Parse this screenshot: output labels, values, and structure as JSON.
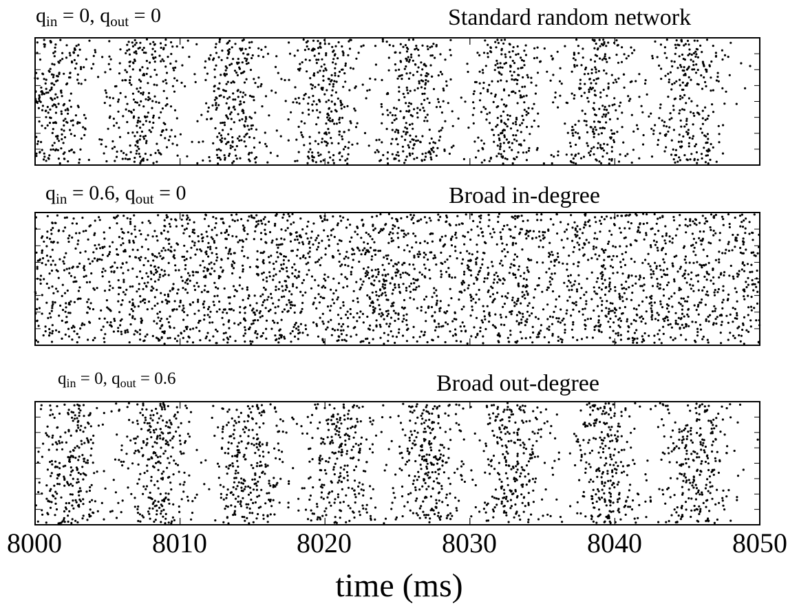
{
  "chart_data": {
    "type": "scatter",
    "xlabel": "time (ms)",
    "x_ticks": [
      "8000",
      "8010",
      "8020",
      "8030",
      "8040",
      "8050"
    ],
    "xlim": [
      8000,
      8050
    ],
    "grid": false,
    "panels": [
      {
        "title": "Standard random network",
        "params": {
          "in_label": "q",
          "in_sub": "in",
          "in_value": "= 0,",
          "out_label": "q",
          "out_sub": "out",
          "out_value": "= 0"
        },
        "burst_centers_ms": [
          8001.5,
          8007.5,
          8013.5,
          8020,
          8026,
          8032.5,
          8039,
          8045
        ],
        "burst_width_ms": 1.3,
        "synchrony": "high"
      },
      {
        "title": "Broad in-degree",
        "params": {
          "in_label": "q",
          "in_sub": "in",
          "in_value": "= 0.6,",
          "out_label": "q",
          "out_sub": "out",
          "out_value": "= 0"
        },
        "burst_centers_ms": [
          8008,
          8016,
          8024,
          8033,
          8039.5,
          8045
        ],
        "burst_width_ms": 2.2,
        "synchrony": "low"
      },
      {
        "title": "Broad out-degree",
        "params": {
          "in_label": "q",
          "in_sub": "in",
          "in_value": "= 0,",
          "out_label": "q",
          "out_sub": "out",
          "out_value": "= 0.6"
        },
        "burst_centers_ms": [
          8002.5,
          8008.5,
          8014.8,
          8021,
          8027,
          8033,
          8039.5,
          8045.5
        ],
        "burst_width_ms": 1.2,
        "synchrony": "high"
      }
    ]
  }
}
